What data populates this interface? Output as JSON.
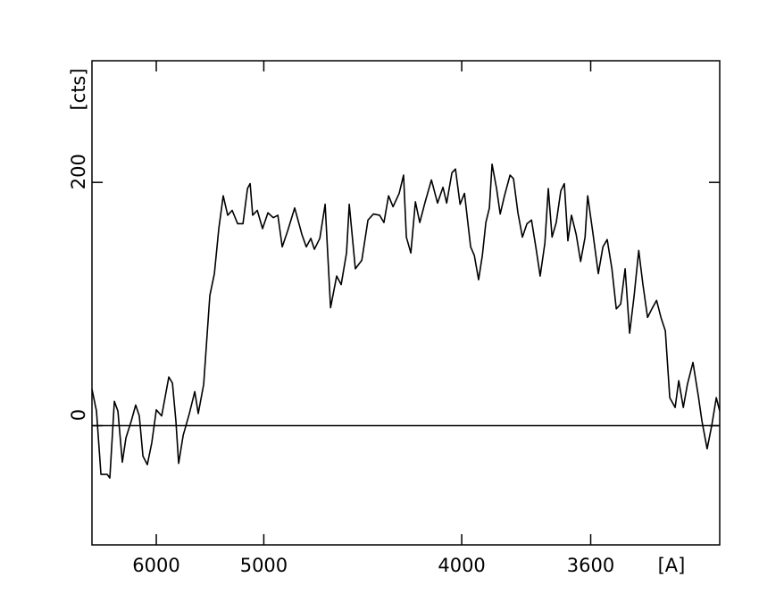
{
  "chart_data": {
    "type": "line",
    "x_label": "[A]",
    "y_label": "[cts]",
    "xscale": "inverse-square",
    "xlim": [
      6990,
      3300
    ],
    "xticks": [
      6000,
      5000,
      4000,
      3600
    ],
    "ylim": [
      -98,
      300
    ],
    "yticks": [
      0,
      200
    ],
    "zero_line": true,
    "color": "#000000",
    "x": [
      6990,
      6904,
      6822,
      6712,
      6667,
      6592,
      6535,
      6466,
      6411,
      6332,
      6270,
      6220,
      6171,
      6113,
      6056,
      6000,
      5935,
      5852,
      5811,
      5773,
      5743,
      5695,
      5631,
      5577,
      5543,
      5491,
      5434,
      5393,
      5354,
      5316,
      5278,
      5241,
      5197,
      5155,
      5120,
      5100,
      5081,
      5047,
      5009,
      4971,
      4934,
      4903,
      4874,
      4839,
      4794,
      4749,
      4723,
      4696,
      4675,
      4644,
      4614,
      4584,
      4551,
      4527,
      4499,
      4485,
      4454,
      4422,
      4392,
      4366,
      4337,
      4317,
      4296,
      4276,
      4249,
      4230,
      4218,
      4199,
      4180,
      4162,
      4140,
      4115,
      4091,
      4070,
      4056,
      4036,
      4023,
      4006,
      3990,
      3968,
      3955,
      3940,
      3927,
      3915,
      3903,
      3894,
      3879,
      3867,
      3853,
      3835,
      3824,
      3810,
      3796,
      3782,
      3768,
      3755,
      3742,
      3728,
      3718,
      3707,
      3695,
      3682,
      3672,
      3662,
      3652,
      3639,
      3627,
      3615,
      3608,
      3594,
      3580,
      3568,
      3557,
      3545,
      3534,
      3523,
      3512,
      3501,
      3490,
      3479,
      3469,
      3458,
      3448,
      3437,
      3427,
      3417,
      3407,
      3395,
      3387,
      3377,
      3368,
      3356,
      3344,
      3337,
      3326,
      3316,
      3307,
      3300
    ],
    "values": [
      30,
      12,
      -40,
      -40,
      -43,
      20,
      12,
      -30,
      -10,
      4,
      17,
      8,
      -25,
      -32,
      -14,
      13,
      8,
      40,
      35,
      4,
      -31,
      -8,
      10,
      28,
      10,
      34,
      107,
      125,
      162,
      189,
      173,
      177,
      166,
      166,
      195,
      199,
      173,
      177,
      162,
      175,
      171,
      173,
      147,
      160,
      179,
      157,
      147,
      154,
      145,
      154,
      182,
      97,
      123,
      116,
      142,
      182,
      129,
      136,
      169,
      174,
      173,
      167,
      189,
      180,
      191,
      206,
      155,
      142,
      184,
      167,
      184,
      202,
      183,
      196,
      183,
      208,
      211,
      182,
      191,
      147,
      140,
      120,
      140,
      167,
      179,
      215,
      195,
      174,
      189,
      206,
      203,
      175,
      155,
      166,
      169,
      147,
      123,
      150,
      195,
      155,
      167,
      193,
      199,
      152,
      173,
      157,
      135,
      155,
      189,
      158,
      125,
      147,
      153,
      129,
      96,
      100,
      129,
      76,
      107,
      144,
      116,
      89,
      96,
      103,
      89,
      78,
      23,
      15,
      37,
      15,
      34,
      52,
      23,
      4,
      -19,
      1,
      23,
      12
    ]
  }
}
